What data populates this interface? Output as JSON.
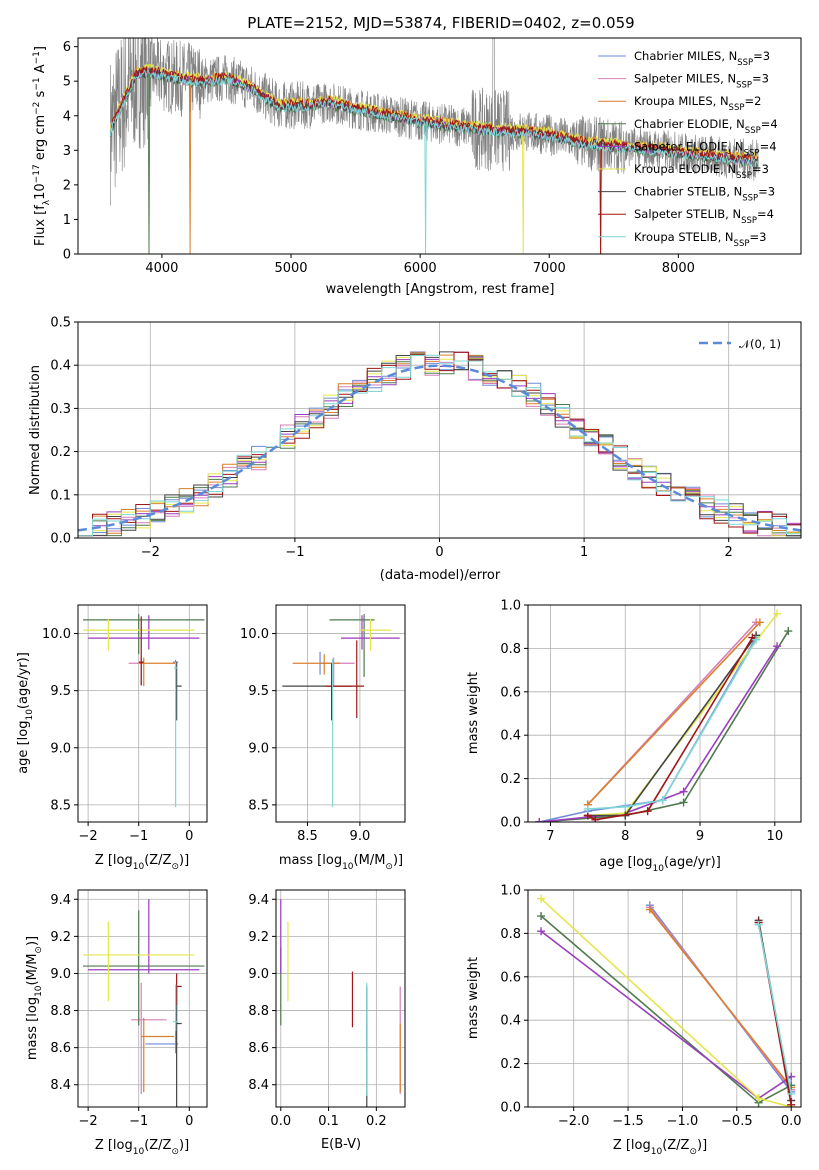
{
  "figure_title": "PLATE=2152, MJD=53874, FIBERID=0402, z=0.059",
  "legend_top": [
    {
      "label": "Chabrier MILES, N",
      "sub": "SSP",
      "val": "=3",
      "color": "#6f8bd8"
    },
    {
      "label": "Salpeter MILES, N",
      "sub": "SSP",
      "val": "=3",
      "color": "#d77fb8"
    },
    {
      "label": "Kroupa MILES, N",
      "sub": "SSP",
      "val": "=2",
      "color": "#d9802c"
    },
    {
      "label": "Chabrier ELODIE, N",
      "sub": "SSP",
      "val": "=4",
      "color": "#4f7a4f"
    },
    {
      "label": "Salpeter ELODIE, N",
      "sub": "SSP",
      "val": "=4",
      "color": "#9b3dbf"
    },
    {
      "label": "Kroupa ELODIE, N",
      "sub": "SSP",
      "val": "=3",
      "color": "#e4e64a"
    },
    {
      "label": "Chabrier STELIB, N",
      "sub": "SSP",
      "val": "=3",
      "color": "#444444"
    },
    {
      "label": "Salpeter STELIB, N",
      "sub": "SSP",
      "val": "=4",
      "color": "#a01515"
    },
    {
      "label": "Kroupa STELIB, N",
      "sub": "SSP",
      "val": "=3",
      "color": "#7fd6d6"
    }
  ],
  "legend_mid": {
    "label": "𝒩(0, 1)",
    "color": "#5b8bd8"
  },
  "chart_data": [
    {
      "id": "spectrum",
      "type": "line",
      "xlabel": "wavelength [Angstrom, rest frame]",
      "ylabel_parts": [
        "Flux [f",
        "λ",
        "10",
        "−17",
        " erg cm",
        "−2",
        " s",
        "−1",
        " A",
        "−1",
        "]"
      ],
      "xlim": [
        3350,
        8950
      ],
      "ylim": [
        0,
        6.25
      ],
      "xticks": [
        4000,
        5000,
        6000,
        7000,
        8000
      ],
      "yticks": [
        0,
        1,
        2,
        3,
        4,
        5,
        6
      ],
      "continuum": [
        [
          3600,
          3.6
        ],
        [
          3700,
          4.4
        ],
        [
          3800,
          5.2
        ],
        [
          3900,
          5.3
        ],
        [
          4000,
          5.2
        ],
        [
          4100,
          5.1
        ],
        [
          4300,
          5.0
        ],
        [
          4500,
          5.1
        ],
        [
          4700,
          4.8
        ],
        [
          4900,
          4.3
        ],
        [
          5100,
          4.3
        ],
        [
          5300,
          4.4
        ],
        [
          5500,
          4.2
        ],
        [
          5800,
          4.0
        ],
        [
          6000,
          3.85
        ],
        [
          6200,
          3.75
        ],
        [
          6500,
          3.6
        ],
        [
          6800,
          3.55
        ],
        [
          7000,
          3.45
        ],
        [
          7300,
          3.2
        ],
        [
          7600,
          3.1
        ],
        [
          7900,
          3.0
        ],
        [
          8200,
          2.85
        ],
        [
          8500,
          2.75
        ],
        [
          8620,
          2.7
        ]
      ],
      "data_range": [
        3600,
        8620
      ],
      "model_range": [
        3600,
        8620
      ]
    },
    {
      "id": "residuals",
      "type": "histogram",
      "xlabel": "(data-model)/error",
      "ylabel": "Normed distribution",
      "xlim": [
        -2.5,
        2.5
      ],
      "ylim": [
        0,
        0.5
      ],
      "xticks": [
        -2,
        -1,
        0,
        1,
        2
      ],
      "yticks": [
        0.0,
        0.1,
        0.2,
        0.3,
        0.4,
        0.5
      ],
      "bin_width": 0.1,
      "gaussian": {
        "mean": 0,
        "sigma": 1
      }
    },
    {
      "id": "age_vs_Z",
      "type": "scatter",
      "xlabel": "Z [log",
      "xlabel_parts": [
        "Z [log",
        "10",
        "(Z/Z",
        "⊙",
        ")]"
      ],
      "ylabel_parts": [
        "age  [log",
        "10",
        "(age/yr)]"
      ],
      "xlim": [
        -2.2,
        0.35
      ],
      "ylim": [
        8.35,
        10.25
      ],
      "xticks": [
        -2,
        -1,
        0
      ],
      "yticks": [
        8.5,
        9.0,
        9.5,
        10.0
      ],
      "points": [
        {
          "x": -0.27,
          "y": 9.75,
          "xe": [
            0.05,
            0.05
          ],
          "ye": [
            0.5,
            0.02
          ],
          "c": "#6f8bd8"
        },
        {
          "x": -0.95,
          "y": 9.74,
          "xe": [
            0.25,
            0.05
          ],
          "ye": [
            0.2,
            0.05
          ],
          "c": "#d77fb8"
        },
        {
          "x": -0.9,
          "y": 9.74,
          "xe": [
            0.1,
            0.65
          ],
          "ye": [
            0.2,
            0.05
          ],
          "c": "#d9802c"
        },
        {
          "x": -1.0,
          "y": 10.12,
          "xe": [
            1.1,
            1.3
          ],
          "ye": [
            0.3,
            0.05
          ],
          "c": "#4f7a4f"
        },
        {
          "x": -0.8,
          "y": 9.96,
          "xe": [
            1.2,
            1.0
          ],
          "ye": [
            0.1,
            0.2
          ],
          "c": "#9b3dbf"
        },
        {
          "x": -1.6,
          "y": 10.03,
          "xe": [
            0.5,
            1.7
          ],
          "ye": [
            0.18,
            0.1
          ],
          "c": "#e4e64a"
        },
        {
          "x": -0.25,
          "y": 9.54,
          "xe": [
            0.0,
            0.1
          ],
          "ye": [
            0.3,
            0.21
          ],
          "c": "#444444"
        },
        {
          "x": -0.95,
          "y": 9.75,
          "xe": [
            0.05,
            0.05
          ],
          "ye": [
            0.2,
            0.4
          ],
          "c": "#a01515"
        },
        {
          "x": -0.27,
          "y": 9.7,
          "xe": [
            0.03,
            0.03
          ],
          "ye": [
            1.22,
            0.05
          ],
          "c": "#7fd6d6"
        }
      ]
    },
    {
      "id": "age_vs_mass",
      "type": "scatter",
      "xlabel_parts": [
        "mass [log",
        "10",
        "(M/M",
        "⊙",
        ")]"
      ],
      "xlim": [
        8.2,
        9.43
      ],
      "ylim": [
        8.35,
        10.25
      ],
      "xticks": [
        8.5,
        9.0
      ],
      "xticklabels": [
        "8.5",
        "9.0"
      ],
      "yticks": [
        8.5,
        9.0,
        9.5,
        10.0
      ],
      "points": [
        {
          "x": 8.62,
          "y": 9.74,
          "xe": [
            0.0,
            0.05
          ],
          "ye": [
            0.1,
            0.1
          ],
          "c": "#6f8bd8"
        },
        {
          "x": 8.75,
          "y": 9.74,
          "xe": [
            0.1,
            0.2
          ],
          "ye": [
            0.2,
            0.05
          ],
          "c": "#d77fb8"
        },
        {
          "x": 8.66,
          "y": 9.74,
          "xe": [
            0.3,
            0.15
          ],
          "ye": [
            0.1,
            0.08
          ],
          "c": "#d9802c"
        },
        {
          "x": 9.04,
          "y": 10.12,
          "xe": [
            0.33,
            0.1
          ],
          "ye": [
            0.5,
            0.05
          ],
          "c": "#4f7a4f"
        },
        {
          "x": 9.02,
          "y": 9.96,
          "xe": [
            0.2,
            0.36
          ],
          "ye": [
            0.1,
            0.2
          ],
          "c": "#9b3dbf"
        },
        {
          "x": 9.1,
          "y": 10.03,
          "xe": [
            0.1,
            0.2
          ],
          "ye": [
            0.18,
            0.1
          ],
          "c": "#e4e64a"
        },
        {
          "x": 8.73,
          "y": 9.54,
          "xe": [
            0.47,
            0.2
          ],
          "ye": [
            0.3,
            0.2
          ],
          "c": "#444444"
        },
        {
          "x": 8.97,
          "y": 9.54,
          "xe": [
            0.3,
            0.07
          ],
          "ye": [
            0.28,
            0.4
          ],
          "c": "#a01515"
        },
        {
          "x": 8.74,
          "y": 9.74,
          "xe": [
            0.0,
            0.0
          ],
          "ye": [
            1.26,
            0.04
          ],
          "c": "#7fd6d6"
        }
      ]
    },
    {
      "id": "mass_weight_vs_age",
      "type": "line",
      "xlabel_parts": [
        "age  [log",
        "10",
        "(age/yr)]"
      ],
      "ylabel": "mass weight",
      "xlim": [
        6.7,
        10.35
      ],
      "ylim": [
        0,
        1
      ],
      "xticks": [
        7,
        8,
        9,
        10
      ],
      "yticks": [
        0.0,
        0.2,
        0.4,
        0.6,
        0.8,
        1.0
      ],
      "series": [
        {
          "c": "#6f8bd8",
          "pts": [
            [
              6.85,
              0.0
            ],
            [
              7.5,
              0.05
            ],
            [
              8.5,
              0.1
            ],
            [
              9.75,
              0.85
            ]
          ]
        },
        {
          "c": "#d77fb8",
          "pts": [
            [
              7.5,
              0.08
            ],
            [
              9.75,
              0.92
            ]
          ]
        },
        {
          "c": "#d9802c",
          "pts": [
            [
              7.5,
              0.08
            ],
            [
              9.8,
              0.92
            ]
          ]
        },
        {
          "c": "#4f7a4f",
          "pts": [
            [
              6.85,
              0.0
            ],
            [
              8.0,
              0.03
            ],
            [
              8.78,
              0.09
            ],
            [
              10.18,
              0.88
            ]
          ]
        },
        {
          "c": "#9b3dbf",
          "pts": [
            [
              6.85,
              0.0
            ],
            [
              8.0,
              0.04
            ],
            [
              8.78,
              0.14
            ],
            [
              10.03,
              0.81
            ]
          ]
        },
        {
          "c": "#e4e64a",
          "pts": [
            [
              7.5,
              0.03
            ],
            [
              8.0,
              0.04
            ],
            [
              10.03,
              0.96
            ]
          ]
        },
        {
          "c": "#444444",
          "pts": [
            [
              7.5,
              0.03
            ],
            [
              8.0,
              0.03
            ],
            [
              9.75,
              0.86
            ]
          ]
        },
        {
          "c": "#a01515",
          "pts": [
            [
              7.5,
              0.03
            ],
            [
              7.6,
              0.01
            ],
            [
              8.3,
              0.05
            ],
            [
              9.7,
              0.85
            ]
          ]
        },
        {
          "c": "#7fd6d6",
          "pts": [
            [
              7.5,
              0.06
            ],
            [
              8.0,
              0.07
            ],
            [
              8.5,
              0.1
            ],
            [
              9.75,
              0.84
            ]
          ]
        }
      ]
    },
    {
      "id": "mass_vs_Z",
      "type": "scatter",
      "xlabel_parts": [
        "Z [log",
        "10",
        "(Z/Z",
        "⊙",
        ")]"
      ],
      "ylabel_parts": [
        "mass [log",
        "10",
        "(M/M",
        "⊙",
        ")]"
      ],
      "xlim": [
        -2.2,
        0.35
      ],
      "ylim": [
        8.28,
        9.45
      ],
      "xticks": [
        -2,
        -1,
        0
      ],
      "yticks": [
        8.4,
        8.6,
        8.8,
        9.0,
        9.2,
        9.4
      ],
      "points": [
        {
          "x": -0.27,
          "y": 8.62,
          "xe": [
            0.6,
            0.05
          ],
          "ye": [
            0.05,
            0.1
          ],
          "c": "#6f8bd8"
        },
        {
          "x": -0.95,
          "y": 8.75,
          "xe": [
            0.2,
            0.5
          ],
          "ye": [
            0.4,
            0.2
          ],
          "c": "#d77fb8"
        },
        {
          "x": -0.9,
          "y": 8.66,
          "xe": [
            0.05,
            0.6
          ],
          "ye": [
            0.3,
            0.1
          ],
          "c": "#d9802c"
        },
        {
          "x": -1.0,
          "y": 9.04,
          "xe": [
            1.1,
            1.3
          ],
          "ye": [
            0.32,
            0.3
          ],
          "c": "#4f7a4f"
        },
        {
          "x": -0.8,
          "y": 9.02,
          "xe": [
            1.2,
            1.0
          ],
          "ye": [
            0.02,
            0.38
          ],
          "c": "#9b3dbf"
        },
        {
          "x": -1.6,
          "y": 9.1,
          "xe": [
            0.5,
            1.7
          ],
          "ye": [
            0.25,
            0.18
          ],
          "c": "#e4e64a"
        },
        {
          "x": -0.25,
          "y": 8.73,
          "xe": [
            0.03,
            0.1
          ],
          "ye": [
            0.45,
            0.2
          ],
          "c": "#444444"
        },
        {
          "x": -0.25,
          "y": 8.93,
          "xe": [
            0.03,
            0.1
          ],
          "ye": [
            0.1,
            0.07
          ],
          "c": "#a01515"
        },
        {
          "x": -0.27,
          "y": 8.74,
          "xe": [
            0.05,
            0.05
          ],
          "ye": [
            0.05,
            0.2
          ],
          "c": "#7fd6d6"
        }
      ]
    },
    {
      "id": "mass_vs_ebv",
      "type": "scatter",
      "xlabel": "E(B-V)",
      "xlim": [
        -0.01,
        0.26
      ],
      "ylim": [
        8.28,
        9.45
      ],
      "xticks": [
        0.0,
        0.1,
        0.2
      ],
      "xticklabels": [
        "0.0",
        "0.1",
        "0.2"
      ],
      "yticks": [
        8.4,
        8.6,
        8.8,
        9.0,
        9.2,
        9.4
      ],
      "points": [
        {
          "x": 0.18,
          "y": 8.62,
          "ye": [
            0.05,
            0.1
          ],
          "c": "#6f8bd8"
        },
        {
          "x": 0.25,
          "y": 8.75,
          "ye": [
            0.4,
            0.18
          ],
          "c": "#d77fb8"
        },
        {
          "x": 0.25,
          "y": 8.66,
          "ye": [
            0.3,
            0.07
          ],
          "c": "#d9802c"
        },
        {
          "x": 0.0,
          "y": 9.04,
          "ye": [
            0.32,
            0.1
          ],
          "c": "#4f7a4f"
        },
        {
          "x": 0.0,
          "y": 9.02,
          "ye": [
            0.02,
            0.38
          ],
          "c": "#9b3dbf"
        },
        {
          "x": 0.015,
          "y": 9.1,
          "ye": [
            0.25,
            0.18
          ],
          "c": "#e4e64a"
        },
        {
          "x": 0.18,
          "y": 8.73,
          "ye": [
            0.45,
            0.2
          ],
          "c": "#444444"
        },
        {
          "x": 0.15,
          "y": 8.85,
          "ye": [
            0.14,
            0.16
          ],
          "c": "#a01515"
        },
        {
          "x": 0.18,
          "y": 8.74,
          "ye": [
            0.4,
            0.21
          ],
          "c": "#7fd6d6"
        }
      ]
    },
    {
      "id": "mass_weight_vs_Z",
      "type": "line",
      "xlabel_parts": [
        "Z [log",
        "10",
        "(Z/Z",
        "⊙",
        ")]"
      ],
      "ylabel": "mass weight",
      "xlim": [
        -2.42,
        0.09
      ],
      "ylim": [
        0,
        1
      ],
      "xticks": [
        -2.0,
        -1.5,
        -1.0,
        -0.5,
        0.0
      ],
      "xticklabels": [
        "−2.0",
        "−1.5",
        "−1.0",
        "−0.5",
        "0.0"
      ],
      "yticks": [
        0.0,
        0.2,
        0.4,
        0.6,
        0.8,
        1.0
      ],
      "series": [
        {
          "c": "#6f8bd8",
          "pts": [
            [
              -1.3,
              0.93
            ],
            [
              0.0,
              0.07
            ]
          ]
        },
        {
          "c": "#d77fb8",
          "pts": [
            [
              -1.3,
              0.92
            ],
            [
              0.0,
              0.08
            ]
          ]
        },
        {
          "c": "#d9802c",
          "pts": [
            [
              -1.3,
              0.91
            ],
            [
              0.0,
              0.09
            ]
          ]
        },
        {
          "c": "#4f7a4f",
          "pts": [
            [
              -2.3,
              0.88
            ],
            [
              -0.3,
              0.02
            ],
            [
              0.0,
              0.1
            ]
          ]
        },
        {
          "c": "#9b3dbf",
          "pts": [
            [
              -2.3,
              0.81
            ],
            [
              -0.3,
              0.04
            ],
            [
              0.0,
              0.14
            ]
          ]
        },
        {
          "c": "#e4e64a",
          "pts": [
            [
              -2.3,
              0.96
            ],
            [
              -0.3,
              0.04
            ],
            [
              0.0,
              0.0
            ]
          ]
        },
        {
          "c": "#444444",
          "pts": [
            [
              -0.3,
              0.86
            ],
            [
              0.0,
              0.03
            ]
          ]
        },
        {
          "c": "#a01515",
          "pts": [
            [
              -0.3,
              0.85
            ],
            [
              0.0,
              0.01
            ]
          ]
        },
        {
          "c": "#7fd6d6",
          "pts": [
            [
              -0.3,
              0.84
            ],
            [
              0.0,
              0.06
            ]
          ]
        }
      ]
    }
  ]
}
